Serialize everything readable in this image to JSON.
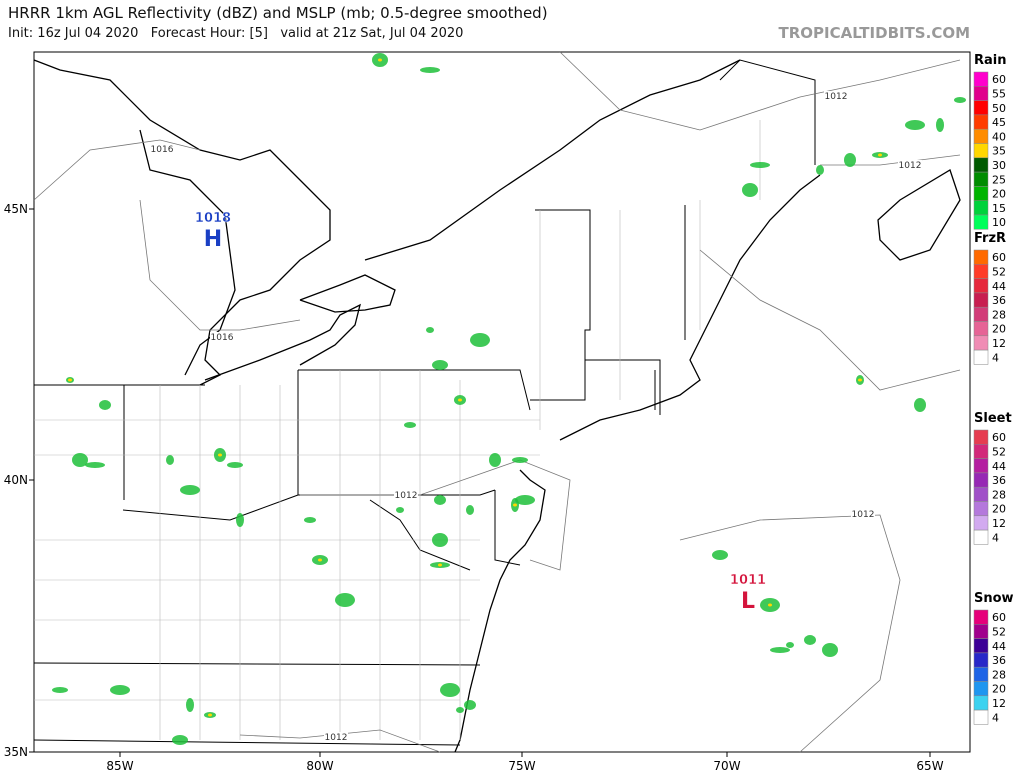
{
  "header": {
    "title": "HRRR 1km AGL Reflectivity (dBZ) and MSLP (mb; 0.5-degree smoothed)",
    "subtitle": "Init: 16z Jul 04 2020   Forecast Hour: [5]   valid at 21z Sat, Jul 04 2020",
    "site": "TROPICALTIDBITS.COM"
  },
  "map": {
    "lon_labels": [
      "85W",
      "80W",
      "75W",
      "70W",
      "65W"
    ],
    "lat_labels": [
      "45N",
      "40N",
      "35N"
    ],
    "isobar_labels": [
      "1012",
      "1012",
      "1012",
      "1012",
      "1012",
      "1016",
      "1016"
    ],
    "pressure_centers": [
      {
        "value": "1018",
        "symbol": "H"
      },
      {
        "value": "1011",
        "symbol": "L"
      }
    ]
  },
  "legend": [
    {
      "title": "Rain",
      "levels": [
        60,
        55,
        50,
        45,
        40,
        35,
        30,
        25,
        20,
        15,
        10
      ],
      "colors": [
        "#ff00cc",
        "#e0008c",
        "#ff0000",
        "#ff3c00",
        "#ff8c00",
        "#ffd700",
        "#005a00",
        "#008c00",
        "#00b400",
        "#00d23c",
        "#00ff5a"
      ]
    },
    {
      "title": "FrzR",
      "levels": [
        60,
        52,
        44,
        36,
        28,
        20,
        12,
        4
      ],
      "colors": [
        "#ff6a00",
        "#ff3c28",
        "#e6283c",
        "#c81e50",
        "#d23c78",
        "#e66496",
        "#f08cb4",
        "#ffffff"
      ]
    },
    {
      "title": "Sleet",
      "levels": [
        60,
        52,
        44,
        36,
        28,
        20,
        12,
        4
      ],
      "colors": [
        "#e63c50",
        "#d2287a",
        "#b41ea0",
        "#9628b4",
        "#a050c8",
        "#b478dc",
        "#d2aaf0",
        "#ffffff"
      ]
    },
    {
      "title": "Snow",
      "levels": [
        60,
        52,
        44,
        36,
        28,
        20,
        12,
        4
      ],
      "colors": [
        "#e6007a",
        "#a0008c",
        "#3c0096",
        "#2828c8",
        "#1e64e6",
        "#1e96f0",
        "#3cd2f0",
        "#ffffff"
      ]
    }
  ]
}
